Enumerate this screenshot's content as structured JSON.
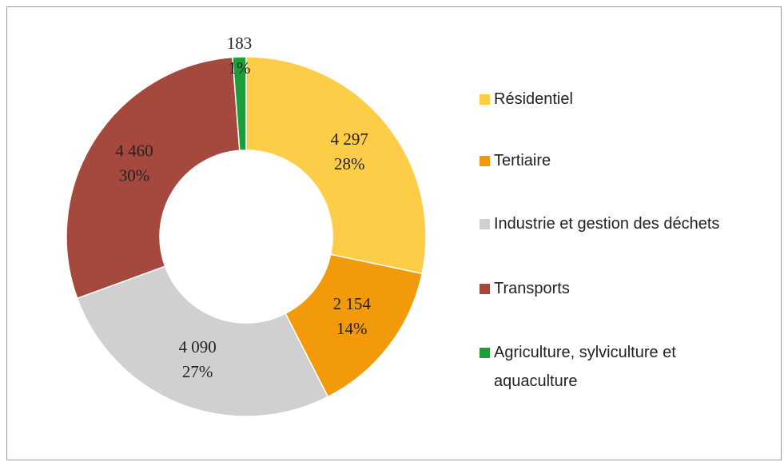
{
  "chart_data": {
    "type": "donut",
    "categories": [
      "Résidentiel",
      "Tertiaire",
      "Industrie et gestion des déchets",
      "Transports",
      "Agriculture, sylviculture et aquaculture"
    ],
    "values": [
      4297,
      2154,
      4090,
      4460,
      183
    ],
    "value_labels": [
      "4 297",
      "2 154",
      "4 090",
      "4 460",
      "183"
    ],
    "percent_labels": [
      "28%",
      "14%",
      "27%",
      "30%",
      "1%"
    ],
    "colors": [
      "#FDCD48",
      "#F39A0B",
      "#D0D0D0",
      "#A5493F",
      "#1E9E3A"
    ]
  }
}
